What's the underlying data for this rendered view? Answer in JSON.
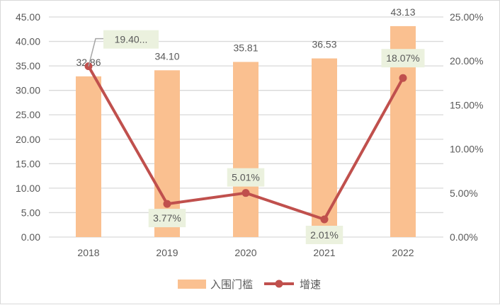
{
  "chart_data": {
    "type": "bar+line",
    "categories": [
      "2018",
      "2019",
      "2020",
      "2021",
      "2022"
    ],
    "series": [
      {
        "name": "入围门槛",
        "type": "bar",
        "axis": "left",
        "values": [
          32.86,
          34.1,
          35.81,
          36.53,
          43.13
        ],
        "labels": [
          "32.86",
          "34.10",
          "35.81",
          "36.53",
          "43.13"
        ],
        "color": "#FAC090"
      },
      {
        "name": "增速",
        "type": "line",
        "axis": "right",
        "values": [
          19.4,
          3.77,
          5.01,
          2.01,
          18.07
        ],
        "labels": [
          "19.40...",
          "3.77%",
          "5.01%",
          "2.01%",
          "18.07%"
        ],
        "color": "#C0504D"
      }
    ],
    "left_axis": {
      "min": 0,
      "max": 45,
      "step": 5,
      "ticks": [
        "0.00",
        "5.00",
        "10.00",
        "15.00",
        "20.00",
        "25.00",
        "30.00",
        "35.00",
        "40.00",
        "45.00"
      ]
    },
    "right_axis": {
      "min": 0,
      "max": 25,
      "step": 5,
      "ticks": [
        "0.00%",
        "5.00%",
        "10.00%",
        "15.00%",
        "20.00%",
        "25.00%"
      ]
    },
    "grid": true,
    "legend": "bottom",
    "label_bg": "#EBF1DE"
  }
}
